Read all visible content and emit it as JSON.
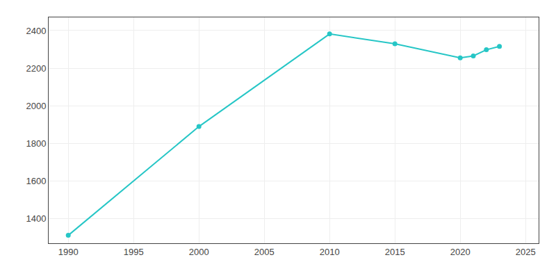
{
  "chart_data": {
    "type": "line",
    "x": [
      1990,
      2000,
      2010,
      2015,
      2020,
      2021,
      2022,
      2023
    ],
    "values": [
      1312,
      1890,
      2382,
      2330,
      2255,
      2265,
      2298,
      2316
    ],
    "color": "#26C6C6",
    "marker": "circle",
    "xlim": [
      1988.5,
      2026
    ],
    "ylim": [
      1270,
      2470
    ],
    "xticks": [
      1990,
      1995,
      2000,
      2005,
      2010,
      2015,
      2020,
      2025
    ],
    "yticks": [
      1400,
      1600,
      1800,
      2000,
      2200,
      2400
    ],
    "grid": true
  }
}
